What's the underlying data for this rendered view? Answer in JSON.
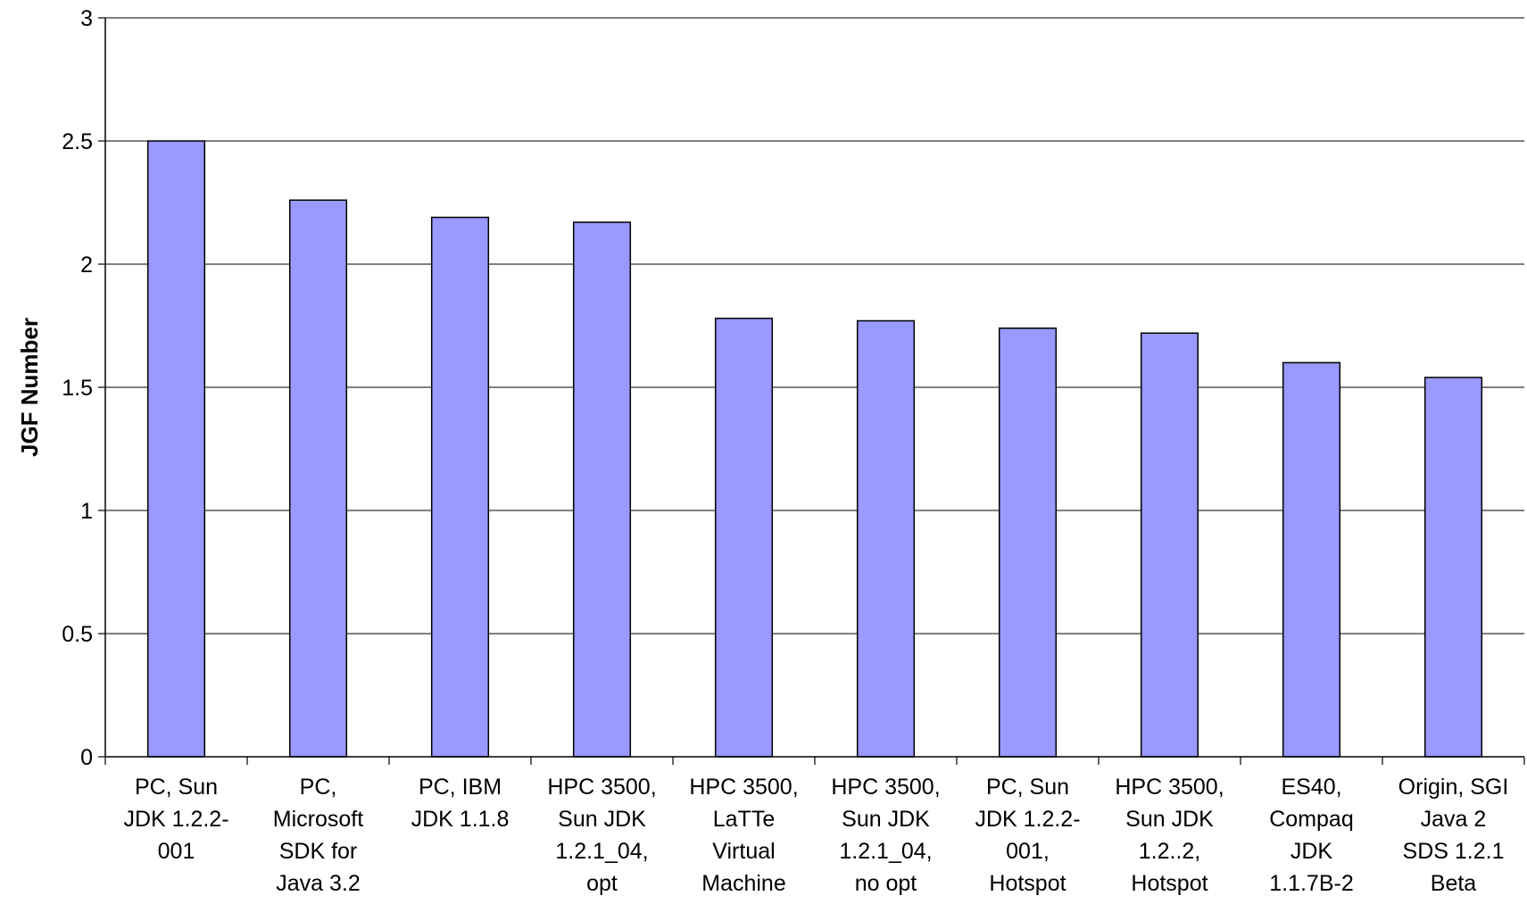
{
  "chart_data": {
    "type": "bar",
    "title": "",
    "xlabel": "",
    "ylabel": "JGF Number",
    "ylim": [
      0,
      3
    ],
    "yticks": [
      "0",
      "0.5",
      "1",
      "1.5",
      "2",
      "2.5",
      "3"
    ],
    "grid": true,
    "legend": "none",
    "categories": [
      [
        "PC, Sun",
        "JDK 1.2.2-",
        "001"
      ],
      [
        "PC,",
        "Microsoft",
        "SDK for",
        "Java 3.2"
      ],
      [
        "PC, IBM",
        "JDK 1.1.8"
      ],
      [
        "HPC 3500,",
        "Sun JDK",
        "1.2.1_04,",
        "opt"
      ],
      [
        "HPC 3500,",
        "LaTTe",
        "Virtual",
        "Machine"
      ],
      [
        "HPC 3500,",
        "Sun JDK",
        "1.2.1_04,",
        "no opt"
      ],
      [
        "PC, Sun",
        "JDK 1.2.2-",
        "001,",
        "Hotspot"
      ],
      [
        "HPC 3500,",
        "Sun JDK",
        "1.2..2,",
        "Hotspot"
      ],
      [
        "ES40,",
        "Compaq",
        "JDK",
        "1.1.7B-2"
      ],
      [
        "Origin, SGI",
        "Java 2",
        "SDS 1.2.1",
        "Beta"
      ]
    ],
    "values": [
      2.5,
      2.26,
      2.19,
      2.17,
      1.78,
      1.77,
      1.74,
      1.72,
      1.6,
      1.54
    ],
    "bar_color": "#9999ff",
    "bar_edge_color": "#000000"
  }
}
